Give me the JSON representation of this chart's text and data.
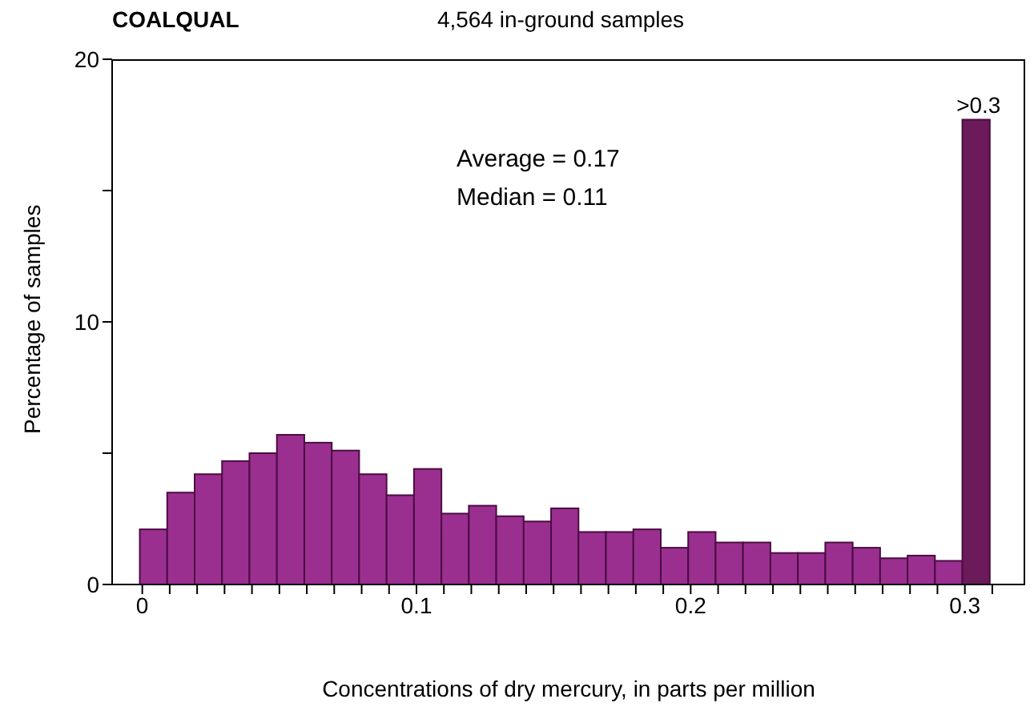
{
  "chart_data": {
    "type": "histogram",
    "title": "COALQUAL",
    "subtitle": "4,564 in-ground samples",
    "xlabel": "Concentrations of dry mercury, in parts per million",
    "ylabel": "Percentage of samples",
    "bins": [
      0,
      0.01,
      0.02,
      0.03,
      0.04,
      0.05,
      0.06,
      0.07,
      0.08,
      0.09,
      0.1,
      0.11,
      0.12,
      0.13,
      0.14,
      0.15,
      0.16,
      0.17,
      0.18,
      0.19,
      0.2,
      0.21,
      0.22,
      0.23,
      0.24,
      0.25,
      0.26,
      0.27,
      0.28,
      0.29,
      0.3,
      0.31
    ],
    "values": [
      2.1,
      3.5,
      4.2,
      4.7,
      5.0,
      5.7,
      5.4,
      5.1,
      4.2,
      3.4,
      4.4,
      2.7,
      3.0,
      2.6,
      2.4,
      2.9,
      2.0,
      2.0,
      2.1,
      1.4,
      2.0,
      1.6,
      1.6,
      1.2,
      1.2,
      1.6,
      1.4,
      1.0,
      1.1,
      0.9,
      17.7
    ],
    "colors": [
      "#9b2f90",
      "#9b2f90",
      "#9b2f90",
      "#9b2f90",
      "#9b2f90",
      "#9b2f90",
      "#9b2f90",
      "#9b2f90",
      "#9b2f90",
      "#9b2f90",
      "#9b2f90",
      "#9b2f90",
      "#9b2f90",
      "#9b2f90",
      "#9b2f90",
      "#9b2f90",
      "#9b2f90",
      "#9b2f90",
      "#9b2f90",
      "#9b2f90",
      "#9b2f90",
      "#9b2f90",
      "#9b2f90",
      "#9b2f90",
      "#9b2f90",
      "#9b2f90",
      "#9b2f90",
      "#9b2f90",
      "#9b2f90",
      "#9b2f90",
      "#6b1a5a"
    ],
    "xlim": [
      -0.011,
      0.322
    ],
    "ylim": [
      0,
      20
    ],
    "xticks": [
      0,
      {
        "value": 0.01,
        "label": null
      },
      {
        "value": 0.02,
        "label": null
      },
      {
        "value": 0.03,
        "label": null
      },
      {
        "value": 0.04,
        "label": null
      },
      {
        "value": 0.05,
        "label": null
      },
      {
        "value": 0.06,
        "label": null
      },
      {
        "value": 0.07,
        "label": null
      },
      {
        "value": 0.08,
        "label": null
      },
      {
        "value": 0.09,
        "label": null
      },
      0.1,
      {
        "value": 0.11,
        "label": null
      },
      {
        "value": 0.12,
        "label": null
      },
      {
        "value": 0.13,
        "label": null
      },
      {
        "value": 0.14,
        "label": null
      },
      {
        "value": 0.15,
        "label": null
      },
      {
        "value": 0.16,
        "label": null
      },
      {
        "value": 0.17,
        "label": null
      },
      {
        "value": 0.18,
        "label": null
      },
      {
        "value": 0.19,
        "label": null
      },
      0.2,
      {
        "value": 0.21,
        "label": null
      },
      {
        "value": 0.22,
        "label": null
      },
      {
        "value": 0.23,
        "label": null
      },
      {
        "value": 0.24,
        "label": null
      },
      {
        "value": 0.25,
        "label": null
      },
      {
        "value": 0.26,
        "label": null
      },
      {
        "value": 0.27,
        "label": null
      },
      {
        "value": 0.28,
        "label": null
      },
      {
        "value": 0.29,
        "label": null
      },
      0.3,
      {
        "value": 0.31,
        "label": null
      }
    ],
    "yticks": [
      0,
      {
        "value": 5,
        "label": null
      },
      10,
      {
        "value": 15,
        "label": null
      },
      20
    ],
    "annotations": [
      "Average = 0.17\nMedian = 0.11",
      {
        "text": ">0.3",
        "x": 0.305,
        "y": 17.7
      }
    ]
  }
}
